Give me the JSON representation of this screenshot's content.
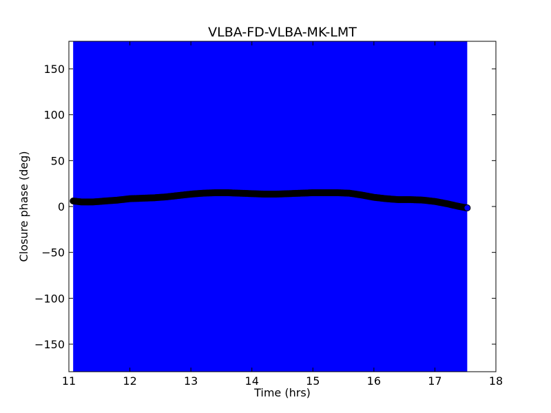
{
  "chart_data": {
    "type": "scatter",
    "title": "VLBA-FD-VLBA-MK-LMT",
    "xlabel": "Time (hrs)",
    "ylabel": "Closure phase (deg)",
    "xlim": [
      11,
      18
    ],
    "ylim": [
      -180,
      180
    ],
    "xticks": [
      11,
      12,
      13,
      14,
      15,
      16,
      17,
      18
    ],
    "xtick_labels": [
      "11",
      "12",
      "13",
      "14",
      "15",
      "16",
      "17",
      "18"
    ],
    "yticks": [
      -150,
      -100,
      -50,
      0,
      50,
      100,
      150
    ],
    "ytick_labels": [
      "−150",
      "−100",
      "−50",
      "0",
      "50",
      "100",
      "150"
    ],
    "grid": false,
    "legend": "none",
    "error_band": {
      "color": "#0000ff",
      "x_range": [
        11.07,
        17.53
      ],
      "y_range": [
        -180,
        180
      ]
    },
    "series": [
      {
        "color": "#000000",
        "x": [
          11.07,
          11.2,
          11.4,
          11.6,
          11.8,
          12.0,
          12.2,
          12.4,
          12.6,
          12.8,
          13.0,
          13.2,
          13.4,
          13.6,
          13.8,
          14.0,
          14.2,
          14.4,
          14.6,
          14.8,
          15.0,
          15.2,
          15.4,
          15.6,
          15.8,
          16.0,
          16.2,
          16.4,
          16.6,
          16.8,
          17.0,
          17.2,
          17.4,
          17.53
        ],
        "y": [
          6,
          5,
          5,
          6,
          7,
          8.5,
          9,
          9.5,
          10.5,
          12,
          13.5,
          14.5,
          15,
          15,
          14.5,
          14,
          13.5,
          13.5,
          14,
          14.5,
          15,
          15,
          15,
          14.5,
          12.5,
          10,
          8.5,
          7.5,
          7.5,
          7,
          5.5,
          3,
          0,
          -1.5
        ]
      }
    ]
  }
}
